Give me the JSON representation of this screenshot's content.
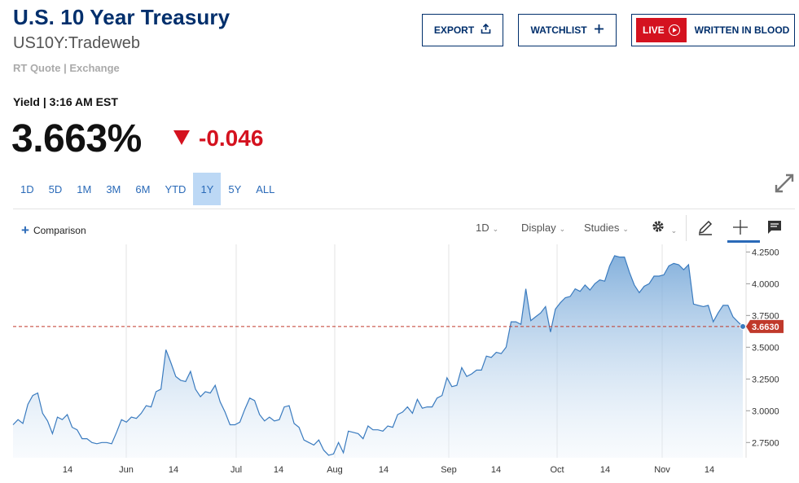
{
  "header": {
    "title": "U.S. 10 Year Treasury",
    "symbol": "US10Y:Tradeweb",
    "quote_source": "RT Quote | Exchange"
  },
  "buttons": {
    "export": "EXPORT",
    "watchlist": "WATCHLIST",
    "live": "LIVE",
    "live_show": "WRITTEN IN BLOOD"
  },
  "quote": {
    "label": "Yield | 3:16 AM EST",
    "price": "3.663%",
    "change": "-0.046",
    "direction": "down"
  },
  "ranges": [
    "1D",
    "5D",
    "1M",
    "3M",
    "6M",
    "YTD",
    "1Y",
    "5Y",
    "ALL"
  ],
  "active_range": "1Y",
  "toolbar": {
    "comparison": "Comparison",
    "interval": "1D",
    "display": "Display",
    "studies": "Studies"
  },
  "colors": {
    "brand": "#002f6c",
    "down": "#d4121f",
    "line": "#3a7bbf",
    "active_range": "#bcd8f5"
  },
  "chart_data": {
    "type": "area",
    "x_tick_labels": [
      "14",
      "Jun",
      "14",
      "Jul",
      "14",
      "Aug",
      "14",
      "Sep",
      "14",
      "Oct",
      "14",
      "Nov",
      "14"
    ],
    "y_tick_labels": [
      "4.2500",
      "4.0000",
      "3.7500",
      "3.5000",
      "3.2500",
      "3.0000",
      "2.7500"
    ],
    "ylim": [
      2.63,
      4.31
    ],
    "grid": "vertical-at-months",
    "last_value_label": "3.6630",
    "last_value": 3.663,
    "values": [
      2.89,
      2.93,
      2.9,
      3.05,
      3.12,
      3.14,
      2.98,
      2.92,
      2.82,
      2.95,
      2.93,
      2.97,
      2.87,
      2.85,
      2.78,
      2.78,
      2.75,
      2.74,
      2.75,
      2.75,
      2.74,
      2.83,
      2.93,
      2.91,
      2.95,
      2.94,
      2.98,
      3.04,
      3.03,
      3.15,
      3.17,
      3.48,
      3.38,
      3.27,
      3.24,
      3.23,
      3.31,
      3.17,
      3.11,
      3.15,
      3.14,
      3.2,
      3.07,
      2.99,
      2.89,
      2.89,
      2.91,
      3.01,
      3.1,
      3.08,
      2.97,
      2.92,
      2.95,
      2.92,
      2.93,
      3.03,
      3.04,
      2.9,
      2.87,
      2.77,
      2.75,
      2.73,
      2.77,
      2.69,
      2.65,
      2.66,
      2.75,
      2.67,
      2.84,
      2.83,
      2.82,
      2.78,
      2.88,
      2.85,
      2.85,
      2.84,
      2.88,
      2.87,
      2.97,
      2.99,
      3.03,
      2.98,
      3.09,
      3.02,
      3.03,
      3.03,
      3.1,
      3.12,
      3.26,
      3.19,
      3.2,
      3.34,
      3.27,
      3.29,
      3.32,
      3.32,
      3.43,
      3.42,
      3.46,
      3.45,
      3.5,
      3.7,
      3.7,
      3.68,
      3.96,
      3.71,
      3.74,
      3.77,
      3.82,
      3.62,
      3.8,
      3.85,
      3.89,
      3.9,
      3.96,
      3.94,
      3.99,
      3.95,
      4.0,
      4.03,
      4.02,
      4.14,
      4.22,
      4.21,
      4.21,
      4.09,
      3.99,
      3.93,
      3.98,
      4.0,
      4.06,
      4.06,
      4.07,
      4.14,
      4.16,
      4.15,
      4.11,
      4.15,
      3.84,
      3.83,
      3.82,
      3.83,
      3.7,
      3.77,
      3.83,
      3.83,
      3.74,
      3.7,
      3.663
    ]
  }
}
